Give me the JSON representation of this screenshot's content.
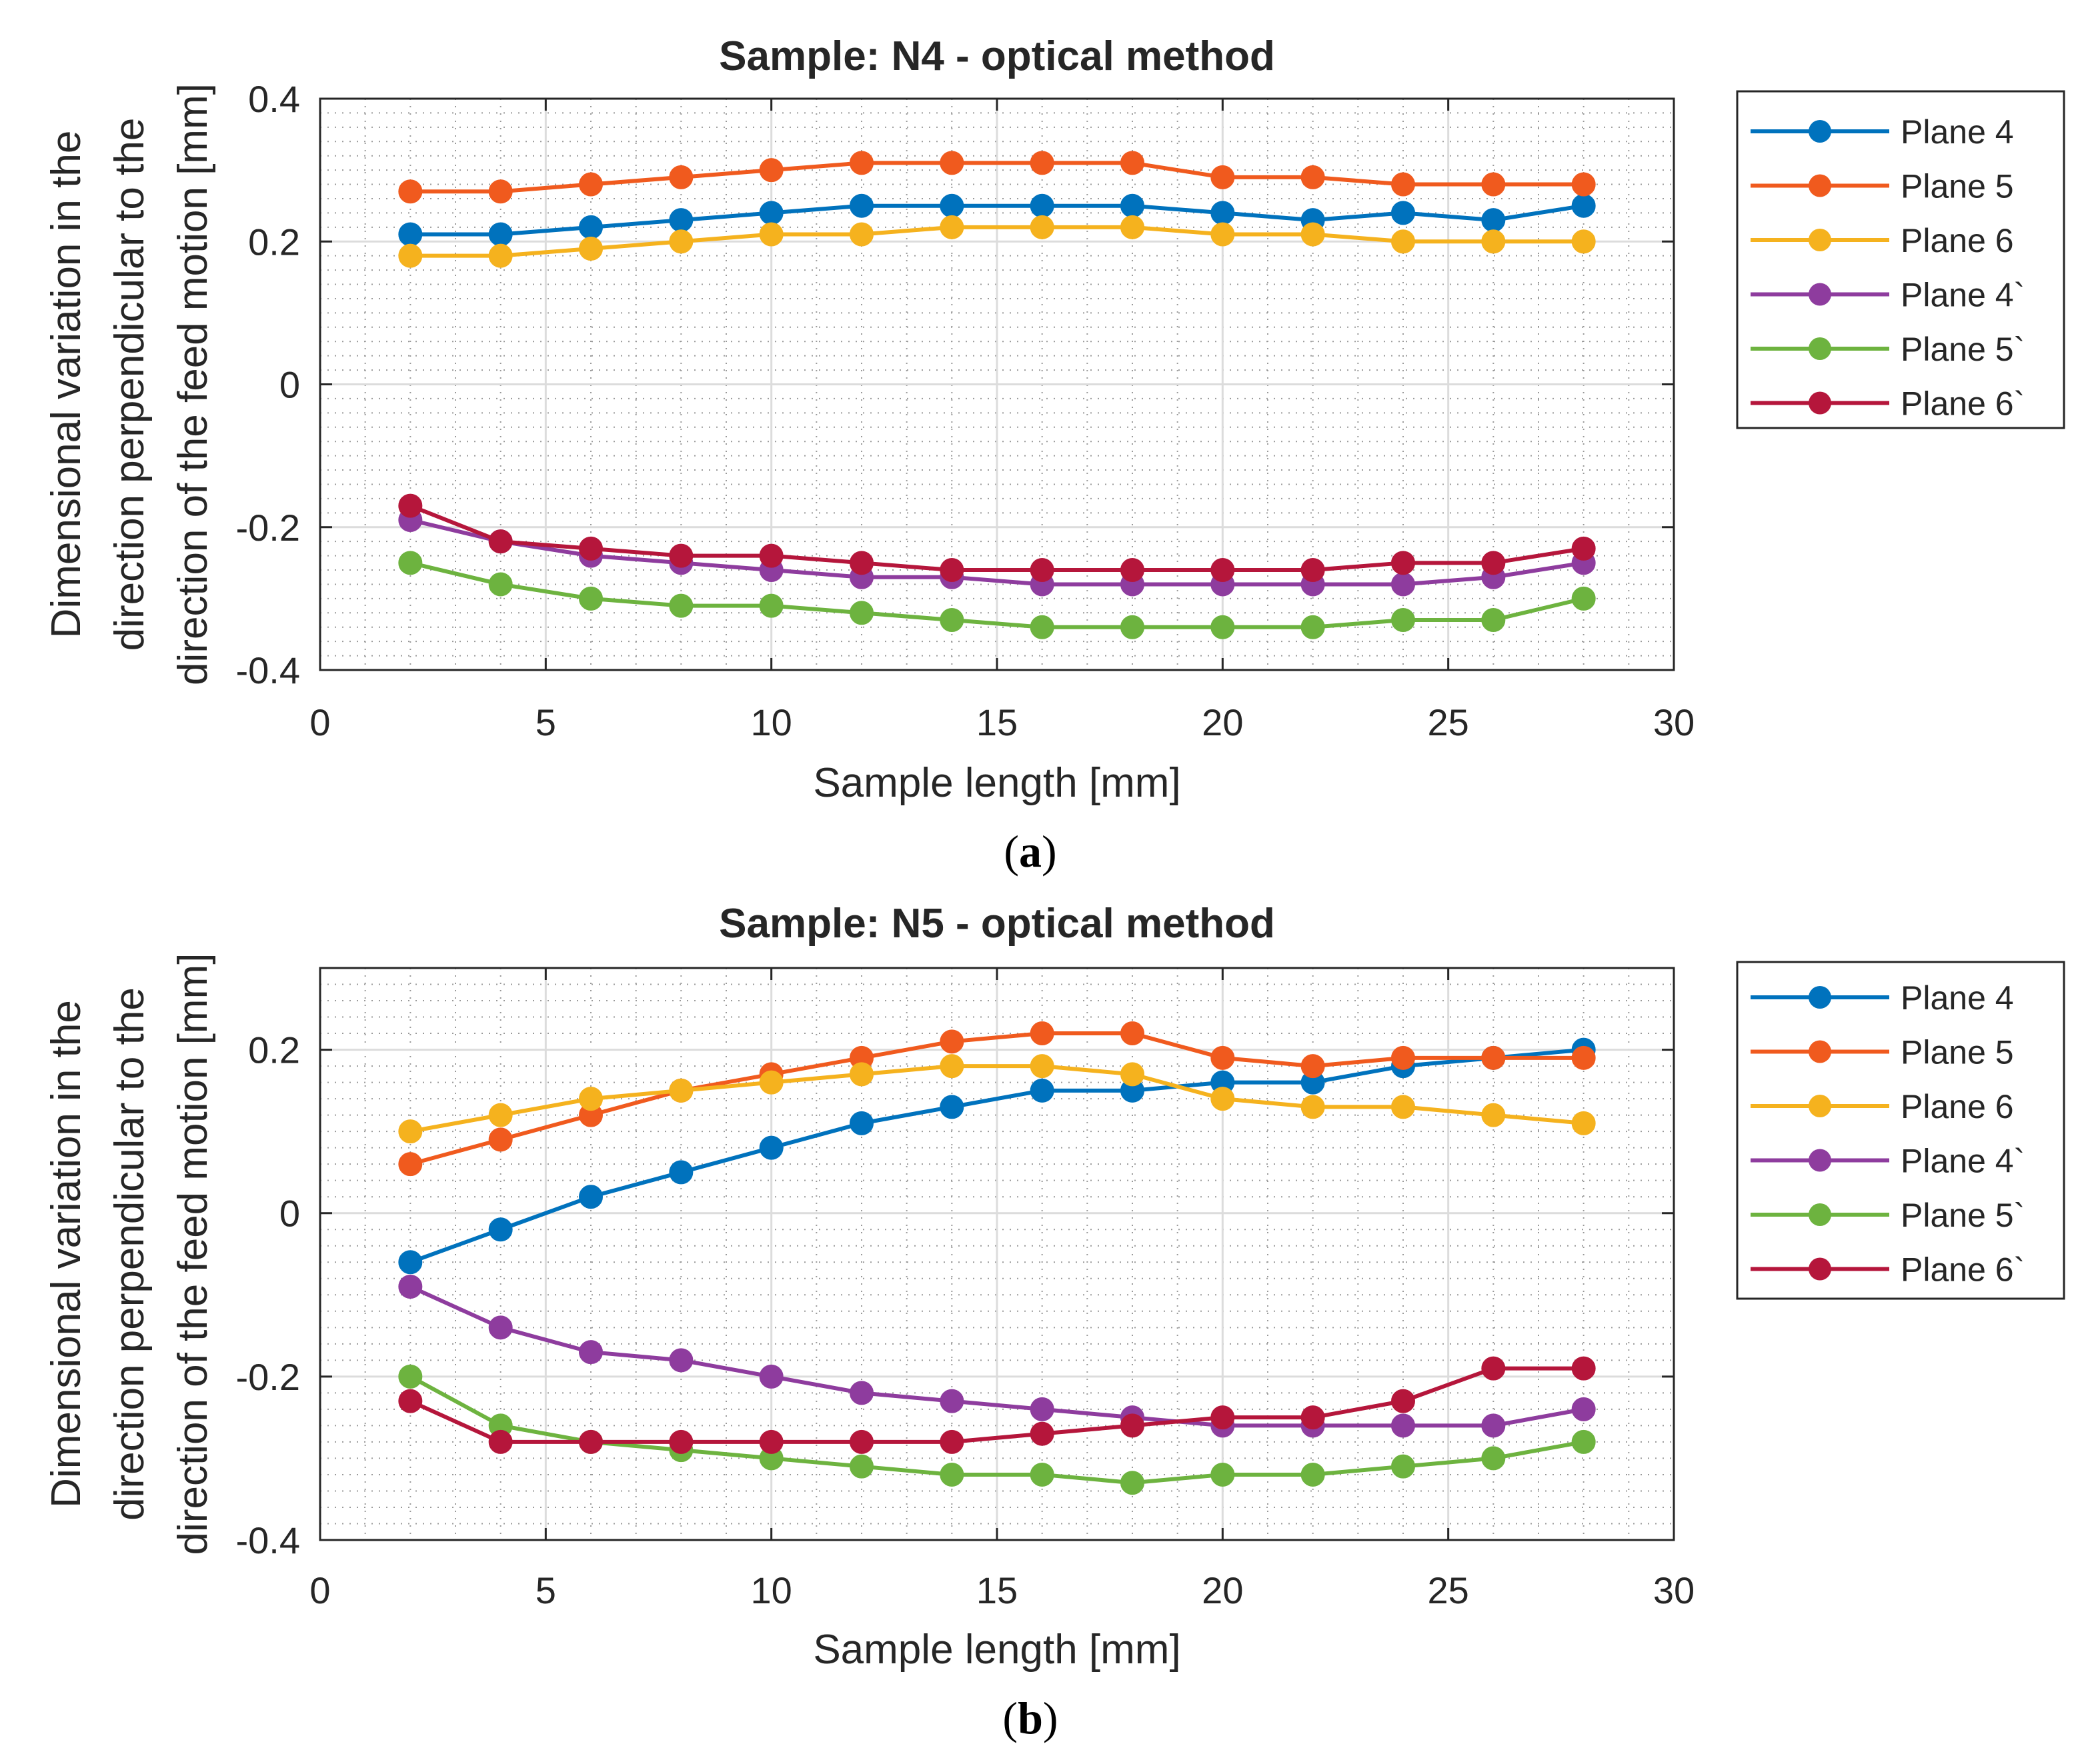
{
  "chart_data": [
    {
      "type": "line",
      "title": "Sample: N4 - optical method",
      "xlabel": "Sample length [mm]",
      "ylabel_lines": [
        "Dimensional variation in the",
        "direction perpendicular to the",
        "direction of the feed motion [mm]"
      ],
      "xlim": [
        0,
        30
      ],
      "ylim": [
        -0.4,
        0.4
      ],
      "xticks": [
        0,
        5,
        10,
        15,
        20,
        25,
        30
      ],
      "yticks": [
        -0.4,
        -0.2,
        0,
        0.2,
        0.4
      ],
      "ytick_labels": [
        "-0.4",
        "-0.2",
        "0",
        "0.2",
        "0.4"
      ],
      "grid": true,
      "minor_grid": true,
      "legend_position": "outside-right",
      "caption": "a",
      "x": [
        2,
        4,
        6,
        8,
        10,
        12,
        14,
        16,
        18,
        20,
        22,
        24,
        26,
        28
      ],
      "series": [
        {
          "name": "Plane 4",
          "color": "#0072BD",
          "values": [
            0.21,
            0.21,
            0.22,
            0.23,
            0.24,
            0.25,
            0.25,
            0.25,
            0.25,
            0.24,
            0.23,
            0.24,
            0.23,
            0.25
          ]
        },
        {
          "name": "Plane 5",
          "color": "#F05A1E",
          "values": [
            0.27,
            0.27,
            0.28,
            0.29,
            0.3,
            0.31,
            0.31,
            0.31,
            0.31,
            0.29,
            0.29,
            0.28,
            0.28,
            0.28
          ]
        },
        {
          "name": "Plane 6",
          "color": "#F5B21E",
          "values": [
            0.18,
            0.18,
            0.19,
            0.2,
            0.21,
            0.21,
            0.22,
            0.22,
            0.22,
            0.21,
            0.21,
            0.2,
            0.2,
            0.2
          ]
        },
        {
          "name": "Plane 4`",
          "color": "#8E3C9E",
          "values": [
            -0.19,
            -0.22,
            -0.24,
            -0.25,
            -0.26,
            -0.27,
            -0.27,
            -0.28,
            -0.28,
            -0.28,
            -0.28,
            -0.28,
            -0.27,
            -0.25
          ]
        },
        {
          "name": "Plane 5`",
          "color": "#6DB33F",
          "values": [
            -0.25,
            -0.28,
            -0.3,
            -0.31,
            -0.31,
            -0.32,
            -0.33,
            -0.34,
            -0.34,
            -0.34,
            -0.34,
            -0.33,
            -0.33,
            -0.3
          ]
        },
        {
          "name": "Plane 6`",
          "color": "#B5163B",
          "values": [
            -0.17,
            -0.22,
            -0.23,
            -0.24,
            -0.24,
            -0.25,
            -0.26,
            -0.26,
            -0.26,
            -0.26,
            -0.26,
            -0.25,
            -0.25,
            -0.23
          ]
        }
      ]
    },
    {
      "type": "line",
      "title": "Sample: N5 - optical method",
      "xlabel": "Sample length [mm]",
      "ylabel_lines": [
        "Dimensional variation in the",
        "direction perpendicular to the",
        "direction of the feed motion [mm]"
      ],
      "xlim": [
        0,
        30
      ],
      "ylim": [
        -0.4,
        0.3
      ],
      "xticks": [
        0,
        5,
        10,
        15,
        20,
        25,
        30
      ],
      "yticks": [
        -0.4,
        -0.2,
        0,
        0.2
      ],
      "ytick_labels": [
        "-0.4",
        "-0.2",
        "0",
        "0.2"
      ],
      "grid": true,
      "minor_grid": true,
      "legend_position": "outside-right",
      "caption": "b",
      "x": [
        2,
        4,
        6,
        8,
        10,
        12,
        14,
        16,
        18,
        20,
        22,
        24,
        26,
        28
      ],
      "series": [
        {
          "name": "Plane 4",
          "color": "#0072BD",
          "values": [
            -0.06,
            -0.02,
            0.02,
            0.05,
            0.08,
            0.11,
            0.13,
            0.15,
            0.15,
            0.16,
            0.16,
            0.18,
            0.19,
            0.2
          ]
        },
        {
          "name": "Plane 5",
          "color": "#F05A1E",
          "values": [
            0.06,
            0.09,
            0.12,
            0.15,
            0.17,
            0.19,
            0.21,
            0.22,
            0.22,
            0.19,
            0.18,
            0.19,
            0.19,
            0.19
          ]
        },
        {
          "name": "Plane 6",
          "color": "#F5B21E",
          "values": [
            0.1,
            0.12,
            0.14,
            0.15,
            0.16,
            0.17,
            0.18,
            0.18,
            0.17,
            0.14,
            0.13,
            0.13,
            0.12,
            0.11
          ]
        },
        {
          "name": "Plane 4`",
          "color": "#8E3C9E",
          "values": [
            -0.09,
            -0.14,
            -0.17,
            -0.18,
            -0.2,
            -0.22,
            -0.23,
            -0.24,
            -0.25,
            -0.26,
            -0.26,
            -0.26,
            -0.26,
            -0.24
          ]
        },
        {
          "name": "Plane 5`",
          "color": "#6DB33F",
          "values": [
            -0.2,
            -0.26,
            -0.28,
            -0.29,
            -0.3,
            -0.31,
            -0.32,
            -0.32,
            -0.33,
            -0.32,
            -0.32,
            -0.31,
            -0.3,
            -0.28
          ]
        },
        {
          "name": "Plane 6`",
          "color": "#B5163B",
          "values": [
            -0.23,
            -0.28,
            -0.28,
            -0.28,
            -0.28,
            -0.28,
            -0.28,
            -0.27,
            -0.26,
            -0.25,
            -0.25,
            -0.23,
            -0.19,
            -0.19
          ]
        }
      ]
    }
  ]
}
